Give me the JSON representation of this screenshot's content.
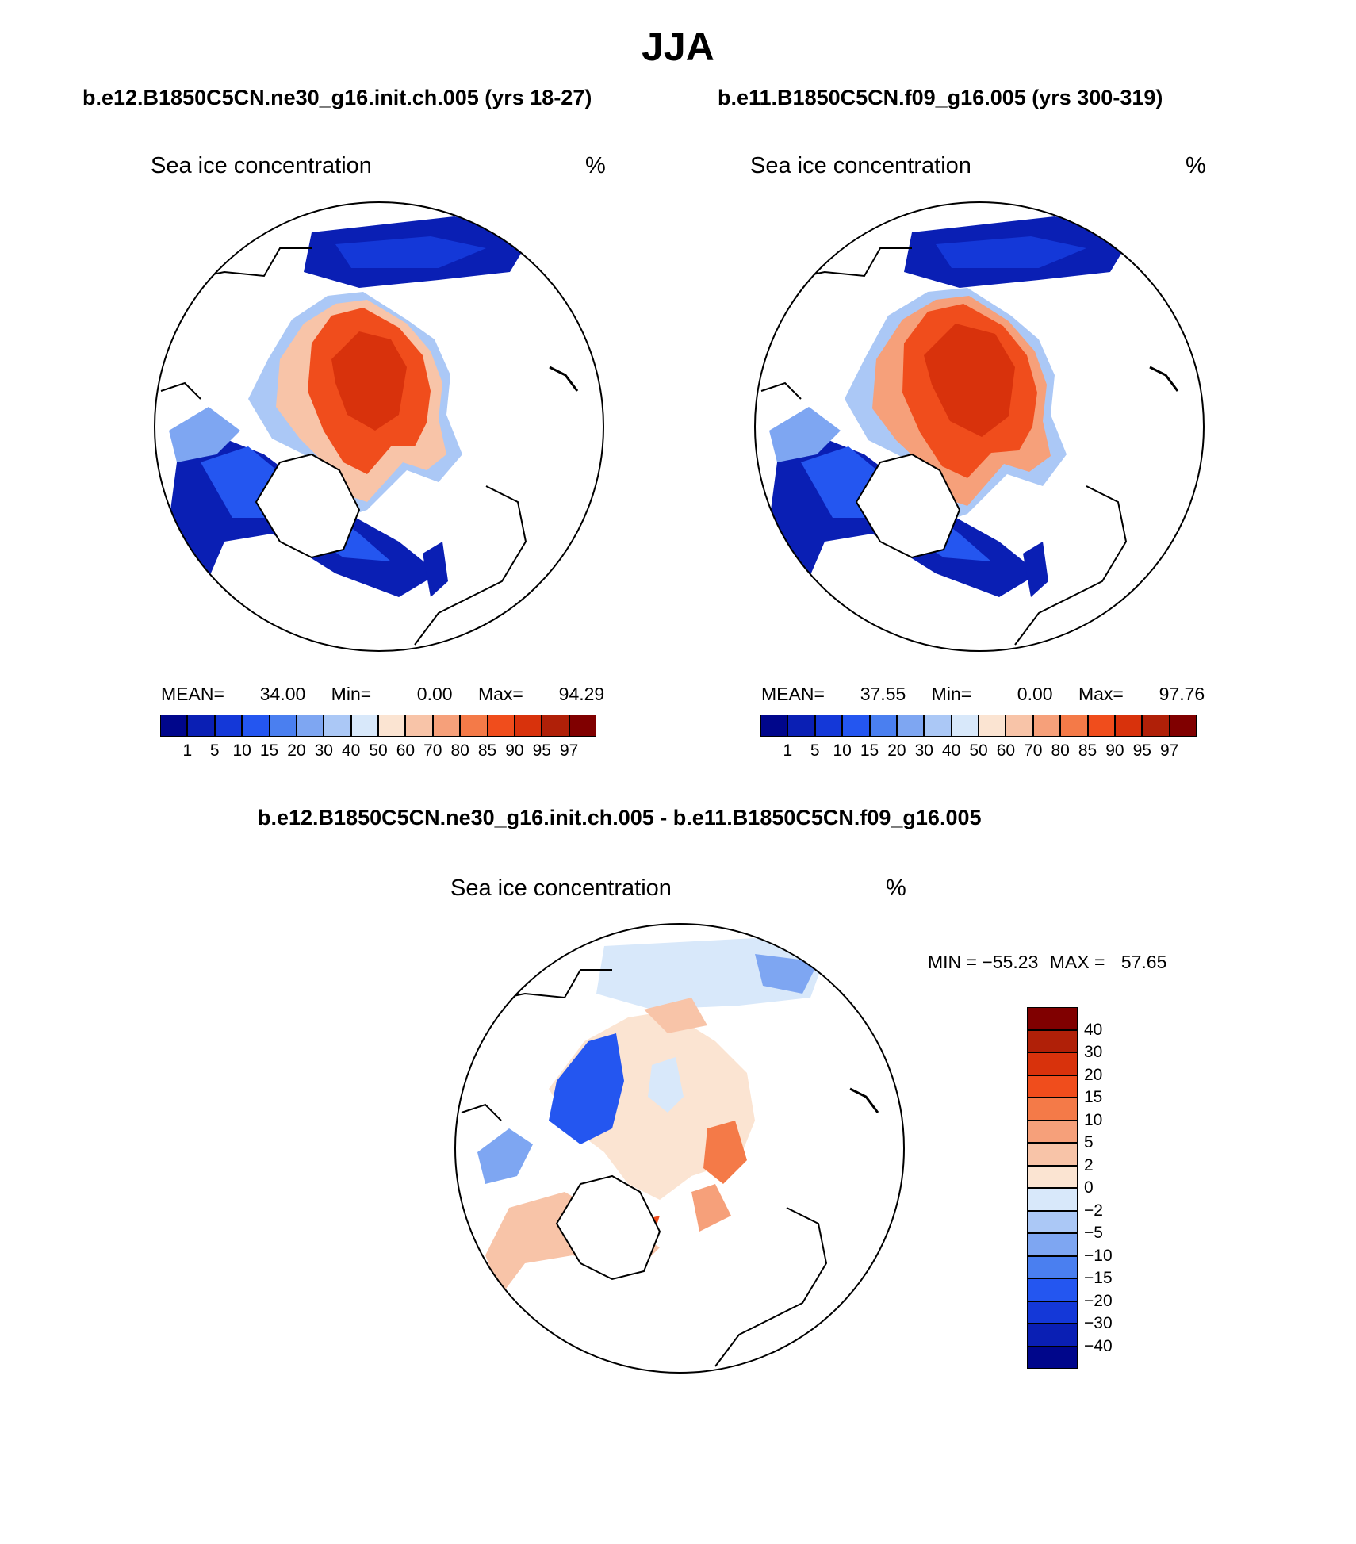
{
  "season": "JJA",
  "panels": [
    {
      "title": "b.e12.B1850C5CN.ne30_g16.init.ch.005 (yrs 18-27)",
      "variable": "Sea ice concentration",
      "units": "%",
      "stats": {
        "mean_label": "MEAN=",
        "mean": "34.00",
        "min_label": "Min=",
        "min": "0.00",
        "max_label": "Max=",
        "max": "94.29"
      }
    },
    {
      "title": "b.e11.B1850C5CN.f09_g16.005 (yrs 300-319)",
      "variable": "Sea ice concentration",
      "units": "%",
      "stats": {
        "mean_label": "MEAN=",
        "mean": "37.55",
        "min_label": "Min=",
        "min": "0.00",
        "max_label": "Max=",
        "max": "97.76"
      }
    },
    {
      "title": "b.e12.B1850C5CN.ne30_g16.init.ch.005 - b.e11.B1850C5CN.f09_g16.005",
      "variable": "Sea ice concentration",
      "units": "%",
      "stats": {
        "min_label": "MIN =",
        "min": "−55.23",
        "max_label": "MAX =",
        "max": "57.65"
      }
    }
  ],
  "colorbars": {
    "abs_levels": [
      "1",
      "5",
      "10",
      "15",
      "20",
      "30",
      "40",
      "50",
      "60",
      "70",
      "80",
      "85",
      "90",
      "95",
      "97"
    ],
    "abs_colors": [
      "#00068b",
      "#0a1fb4",
      "#1438d8",
      "#2456f0",
      "#4a7ff0",
      "#7ea6f2",
      "#abc8f6",
      "#d8e8fa",
      "#fbe4d2",
      "#f8c4a8",
      "#f6a07a",
      "#f47a48",
      "#f04d1c",
      "#d8320c",
      "#b02008",
      "#800000"
    ],
    "diff_levels": [
      "40",
      "30",
      "20",
      "15",
      "10",
      "5",
      "2",
      "0",
      "−2",
      "−5",
      "−10",
      "−15",
      "−20",
      "−30",
      "−40"
    ],
    "diff_colors": [
      "#800000",
      "#b02008",
      "#d8320c",
      "#f04d1c",
      "#f47a48",
      "#f6a07a",
      "#f8c4a8",
      "#fbe4d2",
      "#d8e8fa",
      "#abc8f6",
      "#7ea6f2",
      "#4a7ff0",
      "#2456f0",
      "#1438d8",
      "#0a1fb4",
      "#00068b"
    ]
  }
}
